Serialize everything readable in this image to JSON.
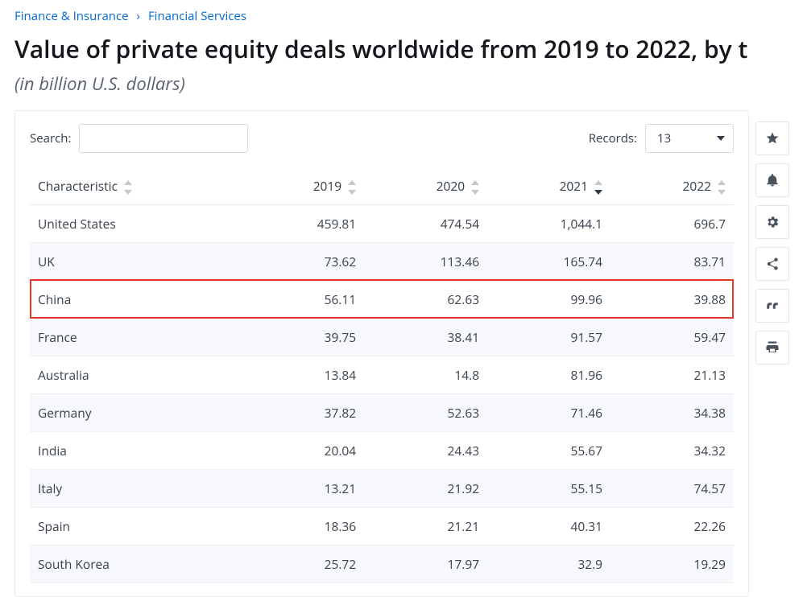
{
  "breadcrumb": {
    "level1": "Finance & Insurance",
    "level2": "Financial Services",
    "separator": "›"
  },
  "heading": {
    "title": "Value of private equity deals worldwide from 2019 to 2022, by t",
    "subtitle": "(in billion U.S. dollars)"
  },
  "toolbar": {
    "search_label": "Search:",
    "search_value": "",
    "records_label": "Records:",
    "records_value": "13"
  },
  "table": {
    "columns": [
      "Characteristic",
      "2019",
      "2020",
      "2021",
      "2022"
    ],
    "col_widths_pct": [
      30,
      17.5,
      17.5,
      17.5,
      17.5
    ],
    "col_align": [
      "left",
      "right",
      "right",
      "right",
      "right"
    ],
    "sorted_column_index": 3,
    "sort_direction": "desc",
    "highlighted_row_index": 2,
    "highlight_color": "#e4352b",
    "row_stripe_color": "#f6f8fb",
    "border_color": "#eef0f3",
    "text_color": "#3a424c",
    "rows": [
      [
        "United States",
        "459.81",
        "474.54",
        "1,044.1",
        "696.7"
      ],
      [
        "UK",
        "73.62",
        "113.46",
        "165.74",
        "83.71"
      ],
      [
        "China",
        "56.11",
        "62.63",
        "99.96",
        "39.88"
      ],
      [
        "France",
        "39.75",
        "38.41",
        "91.57",
        "59.47"
      ],
      [
        "Australia",
        "13.84",
        "14.8",
        "81.96",
        "21.13"
      ],
      [
        "Germany",
        "37.82",
        "52.63",
        "71.46",
        "34.38"
      ],
      [
        "India",
        "20.04",
        "24.43",
        "55.67",
        "34.32"
      ],
      [
        "Italy",
        "13.21",
        "21.92",
        "55.15",
        "74.57"
      ],
      [
        "Spain",
        "18.36",
        "21.21",
        "40.31",
        "22.26"
      ],
      [
        "South Korea",
        "25.72",
        "17.97",
        "32.9",
        "19.29"
      ]
    ]
  },
  "side_actions": [
    {
      "name": "favorite",
      "icon": "star"
    },
    {
      "name": "alert",
      "icon": "bell"
    },
    {
      "name": "settings",
      "icon": "gear"
    },
    {
      "name": "share",
      "icon": "share"
    },
    {
      "name": "cite",
      "icon": "quote"
    },
    {
      "name": "print",
      "icon": "print"
    }
  ],
  "colors": {
    "link": "#0069d2",
    "heading": "#14171c",
    "subtitle": "#5b6470",
    "panel_border": "#e8ebee",
    "input_border": "#d8dce1"
  }
}
